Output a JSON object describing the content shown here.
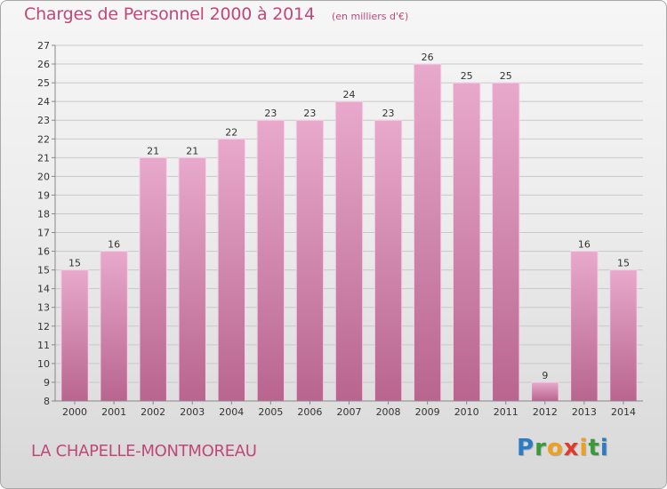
{
  "header": {
    "title": "Charges de Personnel 2000 à 2014",
    "unit": "(en milliers d'€)"
  },
  "footer": {
    "commune": "LA CHAPELLE-MONTMOREAU",
    "logo": {
      "text": "Proxiti",
      "letters": [
        {
          "ch": "P",
          "color": "#2a7cc7"
        },
        {
          "ch": "r",
          "color": "#3a9a3a"
        },
        {
          "ch": "o",
          "color": "#f0a020"
        },
        {
          "ch": "x",
          "color": "#e23a2a"
        },
        {
          "ch": "i",
          "color": "#f0a020"
        },
        {
          "ch": "t",
          "color": "#3a9a3a"
        },
        {
          "ch": "i",
          "color": "#2a7cc7"
        }
      ]
    }
  },
  "colors": {
    "bar_top": "#e8a9cc",
    "bar_bottom": "#b8658f",
    "grid": "#c8c8c8",
    "title": "#c04878"
  },
  "chart_data": {
    "type": "bar",
    "title": "Charges de Personnel 2000 à 2014",
    "subtitle": "(en milliers d'€)",
    "categories": [
      "2000",
      "2001",
      "2002",
      "2003",
      "2004",
      "2005",
      "2006",
      "2007",
      "2008",
      "2009",
      "2010",
      "2011",
      "2012",
      "2013",
      "2014"
    ],
    "values": [
      15,
      16,
      21,
      21,
      22,
      23,
      23,
      24,
      23,
      26,
      25,
      25,
      9,
      16,
      15
    ],
    "ylim": [
      8,
      27
    ],
    "yticks": [
      8,
      9,
      10,
      11,
      12,
      13,
      14,
      15,
      16,
      17,
      18,
      19,
      20,
      21,
      22,
      23,
      24,
      25,
      26,
      27
    ],
    "grid": true,
    "data_labels": true
  }
}
